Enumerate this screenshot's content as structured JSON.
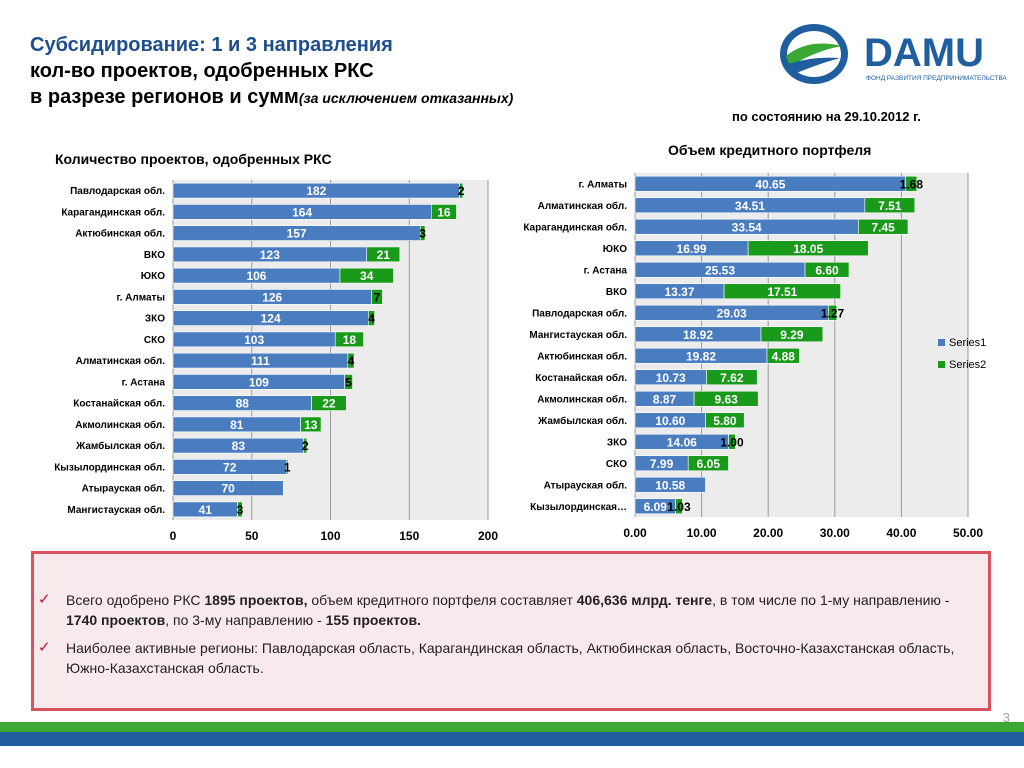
{
  "header": {
    "title_line1": "Субсидирование: 1 и 3 направления",
    "title_line2": "кол-во проектов, одобренных РКС",
    "title_line3": "в разрезе регионов и сумм",
    "title_line3_note": "(за  исключением отказанных)",
    "as_of": "по состоянию на 29.10.2012 г."
  },
  "logo": {
    "text": "DAMU",
    "subtitle": "ФОНД РАЗВИТИЯ ПРЕДПРИНИМАТЕЛЬСТВА",
    "color_text": "#1f5f9f",
    "color_swoosh": "#3aa832"
  },
  "colors": {
    "series1": "#4a7cc0",
    "series2": "#1a9a1a",
    "plot_bg": "#ececec"
  },
  "chart_data": [
    {
      "type": "bar",
      "orientation": "horizontal",
      "stacked": true,
      "title": "Количество проектов, одобренных РКС",
      "categories": [
        "Павлодарская обл.",
        "Карагандинская обл.",
        "Актюбинская обл.",
        "ВКО",
        "ЮКО",
        "г. Алматы",
        "ЗКО",
        "СКО",
        "Алматинская обл.",
        "г. Астана",
        "Костанайская обл.",
        "Акмолинская обл.",
        "Жамбылская обл.",
        "Кызылординская обл.",
        "Атырауская обл.",
        "Мангистауская обл."
      ],
      "series": [
        {
          "values": [
            182,
            164,
            157,
            123,
            106,
            126,
            124,
            103,
            111,
            109,
            88,
            81,
            83,
            72,
            70,
            41
          ],
          "labels": [
            "182",
            "164",
            "157",
            "123",
            "106",
            "126",
            "124",
            "103",
            "111",
            "109",
            "88",
            "81",
            "83",
            "72",
            "70",
            "41"
          ]
        },
        {
          "values": [
            2,
            16,
            3,
            21,
            34,
            7,
            4,
            18,
            4,
            5,
            22,
            13,
            2,
            1,
            0,
            3
          ],
          "labels": [
            "2",
            "16",
            "3",
            "21",
            "34",
            "7",
            "4",
            "18",
            "4",
            "5",
            "22",
            "13",
            "2",
            "1",
            "",
            "3"
          ]
        }
      ],
      "xlim": [
        0,
        200
      ],
      "xticks": [
        "0",
        "50",
        "100",
        "150",
        "200"
      ],
      "grid": true
    },
    {
      "type": "bar",
      "orientation": "horizontal",
      "stacked": true,
      "title": "Объем кредитного портфеля",
      "categories": [
        "г. Алматы",
        "Алматинская обл.",
        "Карагандинская обл.",
        "ЮКО",
        "г. Астана",
        "ВКО",
        "Павлодарская обл.",
        "Мангистауская обл.",
        "Актюбинская обл.",
        "Костанайская обл.",
        "Акмолинская обл.",
        "Жамбылская обл.",
        "ЗКО",
        "СКО",
        "Атырауская обл.",
        "Кызылординская…"
      ],
      "series": [
        {
          "name": "Series1",
          "values": [
            40.65,
            34.51,
            33.54,
            16.99,
            25.53,
            13.37,
            29.03,
            18.92,
            19.82,
            10.73,
            8.87,
            10.6,
            14.06,
            7.99,
            10.58,
            6.09
          ],
          "labels": [
            "40.65",
            "34.51",
            "33.54",
            "16.99",
            "25.53",
            "13.37",
            "29.03",
            "18.92",
            "19.82",
            "10.73",
            "8.87",
            "10.60",
            "14.06",
            "7.99",
            "10.58",
            "6.09"
          ]
        },
        {
          "name": "Series2",
          "values": [
            1.68,
            7.51,
            7.45,
            18.05,
            6.6,
            17.51,
            1.27,
            9.29,
            4.88,
            7.62,
            9.63,
            5.8,
            1.0,
            6.05,
            0,
            1.03
          ],
          "labels": [
            "1.68",
            "7.51",
            "7.45",
            "18.05",
            "6.60",
            "17.51",
            "1.27",
            "9.29",
            "4.88",
            "7.62",
            "9.63",
            "5.80",
            "1.00",
            "6.05",
            "",
            "1.03"
          ]
        }
      ],
      "xlim": [
        0,
        50
      ],
      "xticks": [
        "0.00",
        "10.00",
        "20.00",
        "30.00",
        "40.00",
        "50.00"
      ],
      "grid": true,
      "legend_position": "right"
    }
  ],
  "summary": {
    "item1_parts": [
      {
        "text": "Всего одобрено РКС ",
        "bold": false
      },
      {
        "text": "1895 проектов,",
        "bold": true
      },
      {
        "text": " объем кредитного портфеля составляет ",
        "bold": false
      },
      {
        "text": "406,636 млрд. тенге",
        "bold": true
      },
      {
        "text": ", в том числе по 1-му направлению -  ",
        "bold": false
      },
      {
        "text": "1740 проектов",
        "bold": true
      },
      {
        "text": ", по 3-му направлению - ",
        "bold": false
      },
      {
        "text": "155 проектов.",
        "bold": true
      }
    ],
    "item2": "Наиболее активные регионы: Павлодарская область, Карагандинская область, Актюбинская область, Восточно-Казахстанская область, Южно-Казахстанская область.",
    "check_glyph": "✓"
  },
  "page_number": "3"
}
